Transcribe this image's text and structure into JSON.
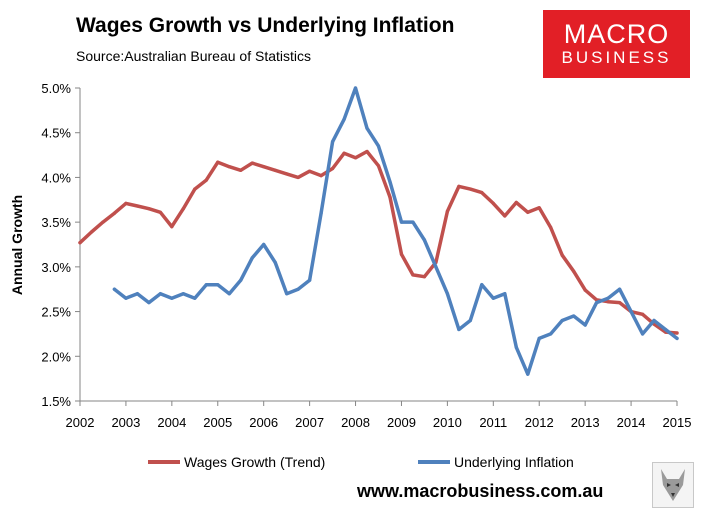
{
  "header": {
    "title": "Wages Growth vs Underlying Inflation",
    "source": "Source:Australian Bureau of Statistics"
  },
  "logo": {
    "line1": "MACRO",
    "line2": "BUSINESS"
  },
  "footer": {
    "website": "www.macrobusiness.com.au"
  },
  "colors": {
    "wages": "#c0504d",
    "inflation": "#4f81bd",
    "axis": "#868686"
  },
  "chart_data": {
    "type": "line",
    "title": "Wages Growth vs Underlying Inflation",
    "xlabel": "",
    "ylabel": "Annual Growth",
    "xlim": [
      2002,
      2015
    ],
    "ylim": [
      1.5,
      5.0
    ],
    "x_ticks": [
      "2002",
      "2003",
      "2004",
      "2005",
      "2006",
      "2007",
      "2008",
      "2009",
      "2010",
      "2011",
      "2012",
      "2013",
      "2014",
      "2015"
    ],
    "y_ticks": [
      "1.5%",
      "2.0%",
      "2.5%",
      "3.0%",
      "3.5%",
      "4.0%",
      "4.5%",
      "5.0%"
    ],
    "y_tick_values": [
      1.5,
      2.0,
      2.5,
      3.0,
      3.5,
      4.0,
      4.5,
      5.0
    ],
    "grid": false,
    "legend_position": "bottom",
    "series": [
      {
        "name": "Wages Growth (Trend)",
        "color": "#c0504d",
        "x": [
          2002.0,
          2002.25,
          2002.5,
          2002.75,
          2003.0,
          2003.25,
          2003.5,
          2003.75,
          2004.0,
          2004.25,
          2004.5,
          2004.75,
          2005.0,
          2005.25,
          2005.5,
          2005.75,
          2006.0,
          2006.25,
          2006.5,
          2006.75,
          2007.0,
          2007.25,
          2007.5,
          2007.75,
          2008.0,
          2008.25,
          2008.5,
          2008.75,
          2009.0,
          2009.25,
          2009.5,
          2009.75,
          2010.0,
          2010.25,
          2010.5,
          2010.75,
          2011.0,
          2011.25,
          2011.5,
          2011.75,
          2012.0,
          2012.25,
          2012.5,
          2012.75,
          2013.0,
          2013.25,
          2013.5,
          2013.75,
          2014.0,
          2014.25,
          2014.5,
          2014.75,
          2015.0
        ],
        "values": [
          3.27,
          3.39,
          3.5,
          3.6,
          3.71,
          3.68,
          3.65,
          3.61,
          3.45,
          3.65,
          3.87,
          3.97,
          4.17,
          4.12,
          4.08,
          4.16,
          4.12,
          4.08,
          4.04,
          4.0,
          4.07,
          4.02,
          4.1,
          4.27,
          4.22,
          4.29,
          4.13,
          3.78,
          3.14,
          2.91,
          2.89,
          3.05,
          3.62,
          3.9,
          3.87,
          3.83,
          3.71,
          3.57,
          3.72,
          3.61,
          3.66,
          3.44,
          3.13,
          2.95,
          2.74,
          2.63,
          2.61,
          2.6,
          2.5,
          2.47,
          2.36,
          2.27,
          2.26
        ]
      },
      {
        "name": "Underlying Inflation",
        "color": "#4f81bd",
        "x": [
          2002.75,
          2003.0,
          2003.25,
          2003.5,
          2003.75,
          2004.0,
          2004.25,
          2004.5,
          2004.75,
          2005.0,
          2005.25,
          2005.5,
          2005.75,
          2006.0,
          2006.25,
          2006.5,
          2006.75,
          2007.0,
          2007.25,
          2007.5,
          2007.75,
          2008.0,
          2008.25,
          2008.5,
          2008.75,
          2009.0,
          2009.25,
          2009.5,
          2009.75,
          2010.0,
          2010.25,
          2010.5,
          2010.75,
          2011.0,
          2011.25,
          2011.5,
          2011.75,
          2012.0,
          2012.25,
          2012.5,
          2012.75,
          2013.0,
          2013.25,
          2013.5,
          2013.75,
          2014.0,
          2014.25,
          2014.5,
          2014.75,
          2015.0
        ],
        "values": [
          2.75,
          2.65,
          2.7,
          2.6,
          2.7,
          2.65,
          2.7,
          2.65,
          2.8,
          2.8,
          2.7,
          2.85,
          3.1,
          3.25,
          3.05,
          2.7,
          2.75,
          2.85,
          3.6,
          4.4,
          4.65,
          5.0,
          4.55,
          4.35,
          3.95,
          3.5,
          3.5,
          3.3,
          3.0,
          2.7,
          2.3,
          2.4,
          2.8,
          2.65,
          2.7,
          2.1,
          1.8,
          2.2,
          2.25,
          2.4,
          2.45,
          2.35,
          2.6,
          2.65,
          2.75,
          2.5,
          2.25,
          2.4,
          2.3,
          2.2
        ]
      }
    ]
  }
}
